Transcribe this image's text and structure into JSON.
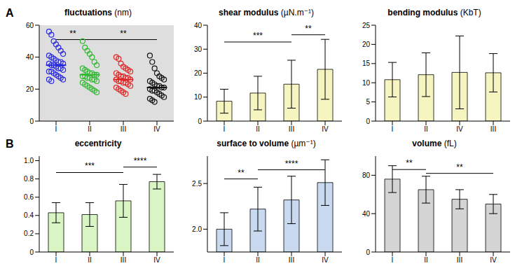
{
  "chart_data": [
    {
      "panel": "A",
      "type": "scatter",
      "title": "fluctuations (nm)",
      "categories": [
        "I",
        "II",
        "III",
        "IV"
      ],
      "values": [
        [
          56,
          54,
          50,
          48,
          46,
          44,
          42,
          41,
          40,
          39,
          38,
          37,
          37,
          36,
          36,
          35,
          35,
          34,
          33,
          33,
          32,
          31,
          31,
          30,
          29,
          28,
          27,
          26,
          26,
          25
        ],
        [
          50,
          46,
          44,
          42,
          40,
          37,
          35,
          33,
          32,
          31,
          30,
          30,
          29,
          29,
          28,
          28,
          27,
          27,
          26,
          26,
          25,
          24,
          23,
          22,
          21,
          20,
          19,
          18
        ],
        [
          40,
          39,
          36,
          34,
          33,
          32,
          31,
          30,
          29,
          28,
          28,
          27,
          27,
          26,
          26,
          25,
          25,
          24,
          24,
          23,
          22,
          21,
          20,
          19,
          18,
          17
        ],
        [
          41,
          37,
          33,
          30,
          28,
          27,
          26,
          25,
          24,
          23,
          22,
          22,
          21,
          21,
          20,
          19,
          19,
          18,
          17,
          16,
          15,
          14,
          13,
          12
        ]
      ],
      "means": [
        35,
        29,
        26,
        21
      ],
      "colors": [
        "#2a2ae0",
        "#33b833",
        "#e02626",
        "#111111"
      ],
      "marker": "open_circle",
      "ylim": [
        0,
        60
      ],
      "yticks": [
        0,
        20,
        40,
        60
      ],
      "annotations": [
        {
          "text": "**",
          "from": "I",
          "to": "II",
          "y": 51
        },
        {
          "text": "**",
          "from": "II",
          "to": "IV",
          "y": 51
        }
      ]
    },
    {
      "type": "bar",
      "title": "shear modulus (µN.m⁻¹)",
      "categories": [
        "I",
        "II",
        "III",
        "IV"
      ],
      "values": [
        8.3,
        11.7,
        15.4,
        21.6
      ],
      "errors": [
        5,
        7,
        10,
        12.5
      ],
      "color": "#f6f5c1",
      "ylim": [
        0,
        40
      ],
      "yticks": [
        0,
        10,
        20,
        30,
        40
      ],
      "annotations": [
        {
          "text": "***",
          "from": "I",
          "to": "III",
          "y": 33
        },
        {
          "text": "**",
          "from": "III",
          "to": "IV",
          "y": 36
        }
      ]
    },
    {
      "type": "bar",
      "title": "bending modulus (KbT)",
      "categories": [
        "I",
        "II",
        "IV",
        "III"
      ],
      "values": [
        10.8,
        12.1,
        12.7,
        12.6
      ],
      "errors": [
        4.5,
        5.7,
        9.5,
        5
      ],
      "color": "#f6f5c1",
      "ylim": [
        0,
        25
      ],
      "yticks": [
        0,
        5,
        10,
        15,
        20,
        25
      ],
      "annotations": []
    },
    {
      "panel": "B",
      "type": "bar",
      "title": "eccentricity",
      "categories": [
        "I",
        "II",
        "III",
        "IV"
      ],
      "values": [
        0.43,
        0.41,
        0.56,
        0.77
      ],
      "errors": [
        0.11,
        0.13,
        0.18,
        0.08
      ],
      "color": "#d9f5c4",
      "ylim": [
        0,
        1.05
      ],
      "yticks": [
        0,
        0.2,
        0.4,
        0.6,
        0.8,
        {
          "value": 1,
          "label": "1.0"
        }
      ],
      "annotations": [
        {
          "text": "***",
          "from": "I",
          "to": "III",
          "y": 0.87
        },
        {
          "text": "****",
          "from": "III",
          "to": "IV",
          "y": 0.93
        }
      ]
    },
    {
      "type": "bar",
      "title": "surface to volume (µm⁻¹)",
      "categories": [
        "I",
        "II",
        "III",
        "IV"
      ],
      "values": [
        2.0,
        2.22,
        2.32,
        2.51
      ],
      "errors": [
        0.18,
        0.24,
        0.26,
        0.25
      ],
      "color": "#c9d9f0",
      "ylim": [
        1.75,
        2.8
      ],
      "yticks": [
        {
          "value": 2,
          "label": "2.0"
        },
        2.5
      ],
      "annotations": [
        {
          "text": "**",
          "from": "I",
          "to": "II",
          "y": 2.55
        },
        {
          "text": "****",
          "from": "II",
          "to": "IV",
          "y": 2.65
        }
      ]
    },
    {
      "type": "bar",
      "title": "volume (fL)",
      "categories": [
        "I",
        "II",
        "III",
        "IV"
      ],
      "values": [
        76,
        65,
        55,
        50
      ],
      "errors": [
        14,
        14,
        10,
        10
      ],
      "color": "#d4d4d4",
      "ylim": [
        0,
        100
      ],
      "yticks": [
        0,
        40,
        80
      ],
      "annotations": [
        {
          "text": "**",
          "from": "I",
          "to": "II",
          "y": 86
        },
        {
          "text": "**",
          "from": "II",
          "to": "IV",
          "y": 82
        }
      ]
    }
  ]
}
